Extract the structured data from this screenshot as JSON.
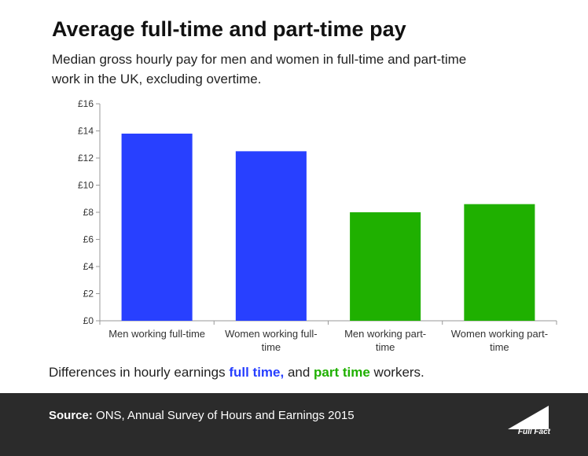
{
  "header": {
    "title": "Average full-time and part-time pay",
    "subtitle": "Median gross hourly pay for men and women in full-time and part-time work in the UK, excluding overtime."
  },
  "legend": {
    "prefix": "Differences in hourly earnings ",
    "full_time": "full time,",
    "middle": " and ",
    "part_time": "part time",
    "suffix": " workers."
  },
  "footer": {
    "source_label": "Source:",
    "source_text": " ONS, Annual Survey of Hours and Earnings 2015",
    "logo_text": "Full Fact"
  },
  "colors": {
    "full_time": "#2840ff",
    "part_time": "#1fb000"
  },
  "chart_data": {
    "type": "bar",
    "categories": [
      [
        "Men working full-time"
      ],
      [
        "Women working full-",
        "time"
      ],
      [
        "Men working part-",
        "time"
      ],
      [
        "Women working part-",
        "time"
      ]
    ],
    "values": [
      13.8,
      12.5,
      8.0,
      8.6
    ],
    "bar_groups": [
      "full_time",
      "full_time",
      "part_time",
      "part_time"
    ],
    "ylim": [
      0,
      16
    ],
    "yticks": [
      0,
      2,
      4,
      6,
      8,
      10,
      12,
      14,
      16
    ],
    "ytick_labels": [
      "£0",
      "£2",
      "£4",
      "£6",
      "£8",
      "£10",
      "£12",
      "£14",
      "£16"
    ],
    "grid": false
  }
}
